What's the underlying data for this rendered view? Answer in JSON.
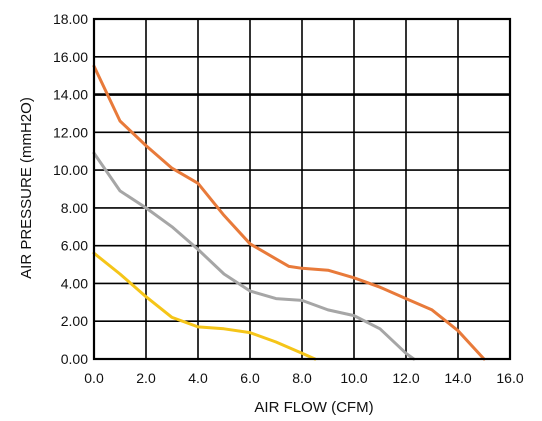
{
  "chart_data": {
    "type": "line",
    "xlabel": "AIR FLOW  (CFM)",
    "ylabel": "AIR PRESSURE  (mmH2O)",
    "xlim": [
      0,
      16
    ],
    "ylim": [
      0,
      18
    ],
    "x_ticks": [
      "0.0",
      "2.0",
      "4.0",
      "6.0",
      "8.0",
      "10.0",
      "12.0",
      "14.0",
      "16.0"
    ],
    "y_ticks": [
      "0.00",
      "2.00",
      "4.00",
      "6.00",
      "8.00",
      "10.00",
      "12.00",
      "14.00",
      "16.00",
      "18.00"
    ],
    "grid": true,
    "legend": "none",
    "series": [
      {
        "color": "#e87a3a",
        "points": [
          [
            0,
            15.5
          ],
          [
            1,
            12.6
          ],
          [
            2,
            11.3
          ],
          [
            3,
            10.1
          ],
          [
            4,
            9.3
          ],
          [
            5,
            7.6
          ],
          [
            6,
            6.1
          ],
          [
            7,
            5.3
          ],
          [
            7.5,
            4.9
          ],
          [
            8,
            4.8
          ],
          [
            9,
            4.7
          ],
          [
            10,
            4.3
          ],
          [
            11,
            3.8
          ],
          [
            12,
            3.2
          ],
          [
            13,
            2.6
          ],
          [
            14,
            1.5
          ],
          [
            15,
            0
          ]
        ]
      },
      {
        "color": "#a6a6a6",
        "points": [
          [
            0,
            10.9
          ],
          [
            1,
            8.9
          ],
          [
            2,
            8.0
          ],
          [
            3,
            7.0
          ],
          [
            4,
            5.8
          ],
          [
            5,
            4.5
          ],
          [
            6,
            3.6
          ],
          [
            7,
            3.2
          ],
          [
            8,
            3.1
          ],
          [
            9,
            2.6
          ],
          [
            10,
            2.3
          ],
          [
            11,
            1.6
          ],
          [
            12,
            0.3
          ],
          [
            12.3,
            0
          ]
        ]
      },
      {
        "color": "#f5c518",
        "points": [
          [
            0,
            5.6
          ],
          [
            1,
            4.5
          ],
          [
            2,
            3.3
          ],
          [
            3,
            2.2
          ],
          [
            4,
            1.7
          ],
          [
            5,
            1.6
          ],
          [
            6,
            1.4
          ],
          [
            7,
            0.9
          ],
          [
            8,
            0.3
          ],
          [
            8.5,
            0
          ]
        ]
      }
    ]
  }
}
